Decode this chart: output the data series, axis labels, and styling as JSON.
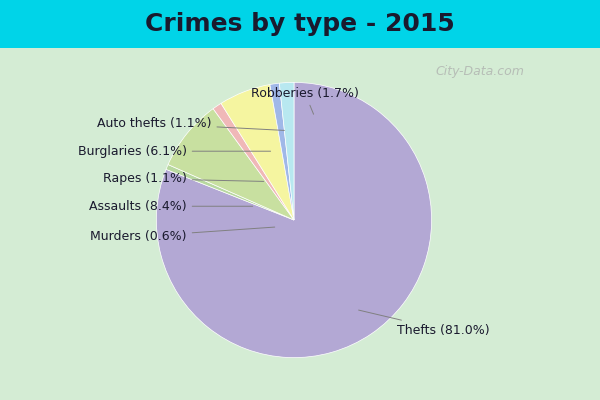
{
  "title": "Crimes by type - 2015",
  "title_fontsize": 18,
  "title_fontweight": "bold",
  "slices": [
    {
      "label": "Thefts",
      "pct": 81.0,
      "color": "#b3a8d4"
    },
    {
      "label": "Murders",
      "pct": 0.6,
      "color": "#b8d8a0"
    },
    {
      "label": "Assaults",
      "pct": 8.4,
      "color": "#c8e0a0"
    },
    {
      "label": "Rapes",
      "pct": 1.1,
      "color": "#f0b8b8"
    },
    {
      "label": "Burglaries",
      "pct": 6.1,
      "color": "#f5f5a0"
    },
    {
      "label": "Auto thefts",
      "pct": 1.1,
      "color": "#a0b8e8"
    },
    {
      "label": "Robberies",
      "pct": 1.7,
      "color": "#b8e8f0"
    }
  ],
  "background_top": "#00d4e8",
  "background_chart": "#d4ecd4",
  "watermark": "City-Data.com",
  "startangle": 90,
  "label_fontsize": 9
}
